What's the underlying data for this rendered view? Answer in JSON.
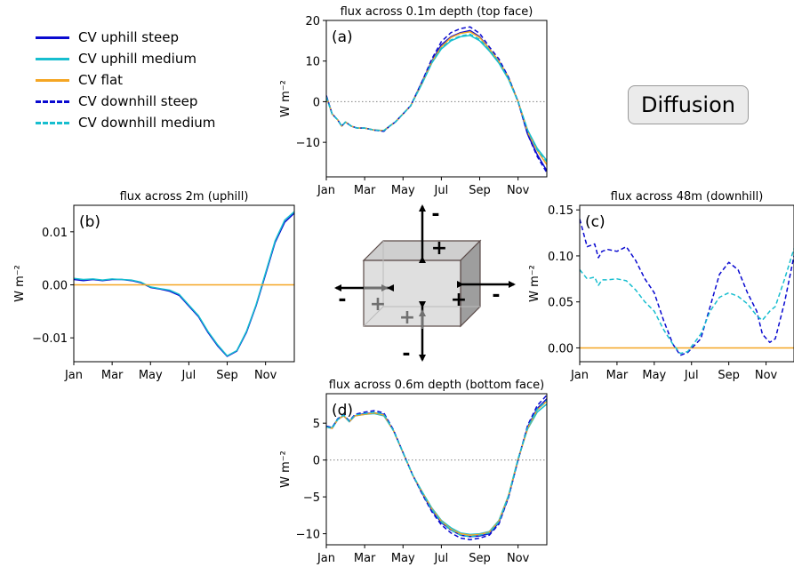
{
  "figure": {
    "badge_label": "Diffusion",
    "colors": {
      "uphill_steep": "#0a0ad0",
      "uphill_medium": "#17becf",
      "flat": "#f5a623",
      "downhill_steep": "#0a0ad0",
      "downhill_medium": "#17becf",
      "zero_line": "#808080",
      "cube_face": "#d9d9d9",
      "arrow": "#000000",
      "arrow_inner": "#707070"
    },
    "legend": [
      {
        "label": "CV uphill steep",
        "color": "#0a0ad0",
        "dash": false
      },
      {
        "label": "CV uphill medium",
        "color": "#17becf",
        "dash": false
      },
      {
        "label": "CV flat",
        "color": "#f5a623",
        "dash": false
      },
      {
        "label": "CV downhill steep",
        "color": "#0a0ad0",
        "dash": true
      },
      {
        "label": "CV downhill medium",
        "color": "#17becf",
        "dash": true
      }
    ],
    "cube_signs": [
      "+",
      "-",
      "+",
      "-",
      "-",
      "+",
      "+",
      "-"
    ]
  },
  "chart_data": [
    {
      "id": "a",
      "type": "line",
      "panel_label": "(a)",
      "title": "flux across 0.1m depth (top face)",
      "xlabel": "",
      "ylabel": "W m⁻²",
      "x_tick_labels": [
        "Jan",
        "Mar",
        "May",
        "Jul",
        "Sep",
        "Nov"
      ],
      "x_ticks": [
        0,
        2,
        4,
        6,
        8,
        10
      ],
      "xlim": [
        0,
        11.5
      ],
      "ylim": [
        -18.5,
        20
      ],
      "y_ticks": [
        -10,
        0,
        10,
        20
      ],
      "y_tick_labels": [
        "−10",
        "0",
        "10",
        "20"
      ],
      "zero_line": true,
      "grid": false,
      "series": [
        {
          "name": "CV uphill steep",
          "color": "#0a0ad0",
          "dash": false,
          "x": [
            0,
            0.3,
            0.6,
            0.8,
            1.0,
            1.3,
            1.6,
            2.0,
            2.5,
            3.0,
            3.3,
            3.6,
            4.0,
            4.4,
            5.0,
            5.5,
            6.0,
            6.5,
            7.0,
            7.5,
            8.0,
            8.5,
            9.0,
            9.5,
            10.0,
            10.5,
            11.0,
            11.5
          ],
          "y": [
            1.5,
            -3,
            -4.5,
            -6,
            -5,
            -6,
            -6.5,
            -6.5,
            -7,
            -7.2,
            -6,
            -5,
            -3,
            -1,
            5,
            10,
            14,
            16,
            17,
            17.5,
            16,
            13,
            10,
            6,
            0,
            -8,
            -13,
            -17
          ]
        },
        {
          "name": "CV uphill medium",
          "color": "#17becf",
          "dash": false,
          "x": [
            0,
            0.3,
            0.6,
            0.8,
            1.0,
            1.3,
            1.6,
            2.0,
            2.5,
            3.0,
            3.3,
            3.6,
            4.0,
            4.4,
            5.0,
            5.5,
            6.0,
            6.5,
            7.0,
            7.5,
            8.0,
            8.5,
            9.0,
            9.5,
            10.0,
            10.5,
            11.0,
            11.5
          ],
          "y": [
            1.2,
            -3,
            -4.5,
            -6,
            -5,
            -6,
            -6.5,
            -6.5,
            -7,
            -7.1,
            -6,
            -5,
            -3,
            -1,
            4.5,
            9.5,
            13,
            15,
            16,
            16.3,
            15,
            12.5,
            9.5,
            5.5,
            0,
            -7,
            -11.5,
            -14.5
          ]
        },
        {
          "name": "CV flat",
          "color": "#f5a623",
          "dash": false,
          "x": [
            0,
            0.3,
            0.6,
            0.8,
            1.0,
            1.3,
            1.6,
            2.0,
            2.5,
            3.0,
            3.3,
            3.6,
            4.0,
            4.4,
            5.0,
            5.5,
            6.0,
            6.5,
            7.0,
            7.5,
            8.0,
            8.5,
            9.0,
            9.5,
            10.0,
            10.5,
            11.0,
            11.5
          ],
          "y": [
            1.3,
            -3,
            -4.5,
            -6,
            -5,
            -6,
            -6.5,
            -6.5,
            -7,
            -7.1,
            -6,
            -5,
            -3,
            -1,
            4.8,
            9.8,
            13.5,
            15.8,
            16.8,
            17.2,
            15.8,
            13,
            10,
            6,
            0,
            -7.5,
            -12,
            -15.5
          ]
        },
        {
          "name": "CV downhill steep",
          "color": "#0a0ad0",
          "dash": true,
          "x": [
            0,
            0.3,
            0.6,
            0.8,
            1.0,
            1.3,
            1.6,
            2.0,
            2.5,
            3.0,
            3.3,
            3.6,
            4.0,
            4.4,
            5.0,
            5.5,
            6.0,
            6.5,
            7.0,
            7.5,
            8.0,
            8.5,
            9.0,
            9.5,
            10.0,
            10.5,
            11.0,
            11.5
          ],
          "y": [
            1.5,
            -3,
            -4.5,
            -6,
            -5,
            -6,
            -6.5,
            -6.5,
            -7,
            -7.3,
            -6,
            -5,
            -3,
            -1,
            5,
            10.5,
            14.8,
            17,
            18,
            18.4,
            16.8,
            13.5,
            10.5,
            6,
            0,
            -8,
            -13.5,
            -17.5
          ]
        },
        {
          "name": "CV downhill medium",
          "color": "#17becf",
          "dash": true,
          "x": [
            0,
            0.3,
            0.6,
            0.8,
            1.0,
            1.3,
            1.6,
            2.0,
            2.5,
            3.0,
            3.3,
            3.6,
            4.0,
            4.4,
            5.0,
            5.5,
            6.0,
            6.5,
            7.0,
            7.5,
            8.0,
            8.5,
            9.0,
            9.5,
            10.0,
            10.5,
            11.0,
            11.5
          ],
          "y": [
            1.2,
            -3,
            -4.5,
            -6,
            -5,
            -6,
            -6.5,
            -6.5,
            -7,
            -7.1,
            -6,
            -5,
            -3,
            -1,
            4.6,
            9.6,
            13.2,
            15.2,
            16.2,
            16.6,
            15.3,
            12.7,
            9.7,
            5.6,
            0,
            -7,
            -11.8,
            -14.8
          ]
        }
      ]
    },
    {
      "id": "b",
      "type": "line",
      "panel_label": "(b)",
      "title": "flux across 2m (uphill)",
      "xlabel": "",
      "ylabel": "W m⁻²",
      "x_tick_labels": [
        "Jan",
        "Mar",
        "May",
        "Jul",
        "Sep",
        "Nov"
      ],
      "x_ticks": [
        0,
        2,
        4,
        6,
        8,
        10
      ],
      "xlim": [
        0,
        11.5
      ],
      "ylim": [
        -0.0145,
        0.015
      ],
      "y_ticks": [
        -0.01,
        0.0,
        0.01
      ],
      "y_tick_labels": [
        "−0.01",
        "0.00",
        "0.01"
      ],
      "zero_line": true,
      "grid": false,
      "series": [
        {
          "name": "CV uphill steep",
          "color": "#0a0ad0",
          "dash": false,
          "x": [
            0,
            0.5,
            1.0,
            1.5,
            2.0,
            2.5,
            3.0,
            3.5,
            4.0,
            4.5,
            5.0,
            5.5,
            6.0,
            6.5,
            7.0,
            7.5,
            8.0,
            8.5,
            9.0,
            9.5,
            10.0,
            10.5,
            11.0,
            11.5
          ],
          "y": [
            0.001,
            0.0008,
            0.001,
            0.0008,
            0.001,
            0.001,
            0.0008,
            0.0004,
            -0.0005,
            -0.0008,
            -0.0012,
            -0.002,
            -0.004,
            -0.006,
            -0.009,
            -0.0115,
            -0.0135,
            -0.0125,
            -0.009,
            -0.004,
            0.002,
            0.008,
            0.0118,
            0.0135
          ]
        },
        {
          "name": "CV uphill medium",
          "color": "#17becf",
          "dash": false,
          "x": [
            0,
            0.5,
            1.0,
            1.5,
            2.0,
            2.5,
            3.0,
            3.5,
            4.0,
            4.5,
            5.0,
            5.5,
            6.0,
            6.5,
            7.0,
            7.5,
            8.0,
            8.5,
            9.0,
            9.5,
            10.0,
            10.5,
            11.0,
            11.5
          ],
          "y": [
            0.0012,
            0.001,
            0.0011,
            0.0009,
            0.0011,
            0.001,
            0.0009,
            0.0005,
            -0.0004,
            -0.0007,
            -0.001,
            -0.0018,
            -0.0038,
            -0.0058,
            -0.0088,
            -0.0113,
            -0.0134,
            -0.0124,
            -0.0088,
            -0.0038,
            0.0023,
            0.0083,
            0.0122,
            0.0138
          ]
        },
        {
          "name": "CV flat",
          "color": "#f5a623",
          "dash": false,
          "x": [
            0,
            11.5
          ],
          "y": [
            0,
            0
          ]
        }
      ]
    },
    {
      "id": "c",
      "type": "line",
      "panel_label": "(c)",
      "title": "flux across 48m (downhill)",
      "xlabel": "",
      "ylabel": "W m⁻²",
      "x_tick_labels": [
        "Jan",
        "Mar",
        "May",
        "Jul",
        "Sep",
        "Nov"
      ],
      "x_ticks": [
        0,
        2,
        4,
        6,
        8,
        10
      ],
      "xlim": [
        0,
        11.5
      ],
      "ylim": [
        -0.015,
        0.155
      ],
      "y_ticks": [
        0.0,
        0.05,
        0.1,
        0.15
      ],
      "y_tick_labels": [
        "0.00",
        "0.05",
        "0.10",
        "0.15"
      ],
      "zero_line": true,
      "grid": false,
      "series": [
        {
          "name": "CV flat",
          "color": "#f5a623",
          "dash": false,
          "x": [
            0,
            11.5
          ],
          "y": [
            0,
            0
          ]
        },
        {
          "name": "CV downhill steep",
          "color": "#0a0ad0",
          "dash": true,
          "x": [
            0,
            0.4,
            0.8,
            1.0,
            1.2,
            1.5,
            2.0,
            2.5,
            3.0,
            3.5,
            4.0,
            4.5,
            5.0,
            5.4,
            5.8,
            6.5,
            7.0,
            7.5,
            8.0,
            8.5,
            9.0,
            9.5,
            9.8,
            10.2,
            10.5,
            11.0,
            11.5
          ],
          "y": [
            0.14,
            0.11,
            0.113,
            0.098,
            0.105,
            0.107,
            0.105,
            0.11,
            0.095,
            0.075,
            0.06,
            0.03,
            0.004,
            -0.008,
            -0.005,
            0.01,
            0.045,
            0.08,
            0.093,
            0.085,
            0.06,
            0.04,
            0.015,
            0.006,
            0.01,
            0.05,
            0.1
          ]
        },
        {
          "name": "CV downhill medium",
          "color": "#17becf",
          "dash": true,
          "x": [
            0,
            0.4,
            0.8,
            1.0,
            1.2,
            1.5,
            2.0,
            2.5,
            3.0,
            3.5,
            4.0,
            4.5,
            5.0,
            5.4,
            5.8,
            6.5,
            7.0,
            7.5,
            8.0,
            8.5,
            9.0,
            9.5,
            9.8,
            10.2,
            10.5,
            11.0,
            11.5
          ],
          "y": [
            0.085,
            0.075,
            0.077,
            0.068,
            0.074,
            0.074,
            0.075,
            0.073,
            0.063,
            0.05,
            0.04,
            0.02,
            0.004,
            -0.006,
            -0.004,
            0.015,
            0.04,
            0.055,
            0.06,
            0.056,
            0.048,
            0.035,
            0.03,
            0.04,
            0.045,
            0.075,
            0.108
          ]
        }
      ]
    },
    {
      "id": "d",
      "type": "line",
      "panel_label": "(d)",
      "title": "flux across 0.6m depth (bottom face)",
      "xlabel": "",
      "ylabel": "W m⁻²",
      "x_tick_labels": [
        "Jan",
        "Mar",
        "May",
        "Jul",
        "Sep",
        "Nov"
      ],
      "x_ticks": [
        0,
        2,
        4,
        6,
        8,
        10
      ],
      "xlim": [
        0,
        11.5
      ],
      "ylim": [
        -11.5,
        9
      ],
      "y_ticks": [
        -10,
        -5,
        0,
        5
      ],
      "y_tick_labels": [
        "−10",
        "−5",
        "0",
        "5"
      ],
      "zero_line": true,
      "grid": false,
      "series": [
        {
          "name": "CV uphill steep",
          "color": "#0a0ad0",
          "dash": false,
          "x": [
            0,
            0.3,
            0.6,
            0.9,
            1.2,
            1.5,
            2.0,
            2.5,
            3.0,
            3.5,
            4.0,
            4.5,
            5.0,
            5.5,
            6.0,
            6.5,
            7.0,
            7.5,
            8.0,
            8.5,
            9.0,
            9.5,
            10.0,
            10.5,
            11.0,
            11.5
          ],
          "y": [
            4.5,
            4.3,
            5.5,
            6.0,
            5.2,
            6.0,
            6.3,
            6.4,
            6.2,
            4.0,
            1.0,
            -2.0,
            -4.5,
            -6.8,
            -8.5,
            -9.5,
            -10.2,
            -10.4,
            -10.3,
            -10.0,
            -8.5,
            -5.0,
            0.0,
            4.5,
            7.0,
            8.3
          ]
        },
        {
          "name": "CV uphill medium",
          "color": "#17becf",
          "dash": false,
          "x": [
            0,
            0.3,
            0.6,
            0.9,
            1.2,
            1.5,
            2.0,
            2.5,
            3.0,
            3.5,
            4.0,
            4.5,
            5.0,
            5.5,
            6.0,
            6.5,
            7.0,
            7.5,
            8.0,
            8.5,
            9.0,
            9.5,
            10.0,
            10.5,
            11.0,
            11.5
          ],
          "y": [
            4.6,
            4.4,
            5.6,
            6.0,
            5.3,
            6.0,
            6.2,
            6.3,
            6.0,
            4.0,
            1.0,
            -2.0,
            -4.3,
            -6.5,
            -8.2,
            -9.2,
            -9.9,
            -10.1,
            -10.0,
            -9.7,
            -8.2,
            -4.8,
            0.2,
            4.2,
            6.5,
            7.6
          ]
        },
        {
          "name": "CV flat",
          "color": "#f5a623",
          "dash": false,
          "x": [
            0,
            0.3,
            0.6,
            0.9,
            1.2,
            1.5,
            2.0,
            2.5,
            3.0,
            3.5,
            4.0,
            4.5,
            5.0,
            5.5,
            6.0,
            6.5,
            7.0,
            7.5,
            8.0,
            8.5,
            9.0,
            9.5,
            10.0,
            10.5,
            11.0,
            11.5
          ],
          "y": [
            4.5,
            4.3,
            5.5,
            6.0,
            5.2,
            6.0,
            6.2,
            6.4,
            6.1,
            4.0,
            1.0,
            -2.0,
            -4.4,
            -6.6,
            -8.3,
            -9.4,
            -10.0,
            -10.2,
            -10.1,
            -9.8,
            -8.3,
            -4.9,
            0.1,
            4.3,
            6.8,
            8.0
          ]
        },
        {
          "name": "CV downhill steep",
          "color": "#0a0ad0",
          "dash": true,
          "x": [
            0,
            0.3,
            0.6,
            0.9,
            1.2,
            1.5,
            2.0,
            2.5,
            3.0,
            3.5,
            4.0,
            4.5,
            5.0,
            5.5,
            6.0,
            6.5,
            7.0,
            7.5,
            8.0,
            8.5,
            9.0,
            9.5,
            10.0,
            10.5,
            11.0,
            11.5
          ],
          "y": [
            4.6,
            4.4,
            5.6,
            6.2,
            5.3,
            6.2,
            6.5,
            6.7,
            6.4,
            4.1,
            1.0,
            -2.0,
            -4.6,
            -7.0,
            -8.8,
            -9.9,
            -10.6,
            -10.8,
            -10.6,
            -10.2,
            -8.7,
            -5.1,
            0.0,
            4.7,
            7.4,
            8.8
          ]
        },
        {
          "name": "CV downhill medium",
          "color": "#17becf",
          "dash": true,
          "x": [
            0,
            0.3,
            0.6,
            0.9,
            1.2,
            1.5,
            2.0,
            2.5,
            3.0,
            3.5,
            4.0,
            4.5,
            5.0,
            5.5,
            6.0,
            6.5,
            7.0,
            7.5,
            8.0,
            8.5,
            9.0,
            9.5,
            10.0,
            10.5,
            11.0,
            11.5
          ],
          "y": [
            4.5,
            4.3,
            5.5,
            6.1,
            5.2,
            6.1,
            6.3,
            6.5,
            6.2,
            4.0,
            1.0,
            -2.0,
            -4.4,
            -6.7,
            -8.4,
            -9.5,
            -10.2,
            -10.4,
            -10.2,
            -9.9,
            -8.4,
            -4.9,
            0.1,
            4.4,
            6.9,
            8.1
          ]
        }
      ]
    }
  ]
}
